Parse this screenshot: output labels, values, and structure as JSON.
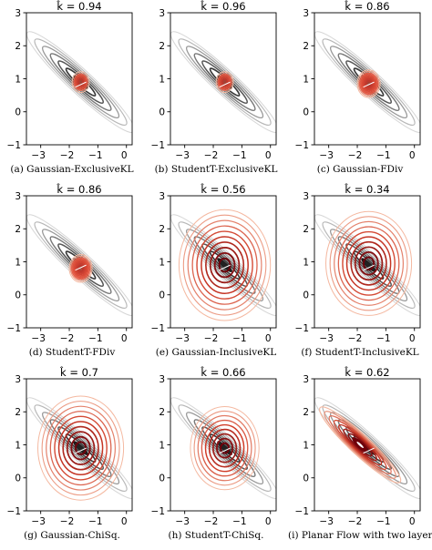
{
  "panels": [
    {
      "id": "a",
      "title": "k̂ = 0.94",
      "caption": "(a) Gaussian-ExclusiveKL"
    },
    {
      "id": "b",
      "title": "k̂ = 0.96",
      "caption": "(b) StudentT-ExclusiveKL"
    },
    {
      "id": "c",
      "title": "k̂ = 0.86",
      "caption": "(c) Gaussian-FDiv"
    },
    {
      "id": "d",
      "title": "k̂ = 0.86",
      "caption": "(d) StudentT-FDiv"
    },
    {
      "id": "e",
      "title": "k̂ = 0.56",
      "caption": "(e) Gaussian-InclusiveKL"
    },
    {
      "id": "f",
      "title": "k̂ = 0.34",
      "caption": "(f) StudentT-InclusiveKL"
    },
    {
      "id": "g",
      "title": "k̂ = 0.7",
      "caption": "(g) Gaussian-ChiSq."
    },
    {
      "id": "h",
      "title": "k̂ = 0.66",
      "caption": "(h) StudentT-ChiSq."
    },
    {
      "id": "i",
      "title": "k̂ = 0.62",
      "caption": "(i) Planar Flow with two layers"
    }
  ],
  "chart_data": {
    "type": "contour",
    "xlim": [
      -3.5,
      0.2
    ],
    "ylim": [
      -1,
      3
    ],
    "xticks": [
      "-3",
      "-2",
      "-1",
      "0"
    ],
    "yticks": [
      "-1",
      "0",
      "1",
      "2",
      "3"
    ],
    "target": {
      "type": "correlated Gaussian",
      "center": [
        -1.6,
        0.9
      ],
      "color_map": "greys"
    },
    "approximations": [
      {
        "panel": "a",
        "center": [
          -1.6,
          0.9
        ],
        "spread": "narrow",
        "max_radius_x": 0.3,
        "levels": 5
      },
      {
        "panel": "b",
        "center": [
          -1.6,
          0.9
        ],
        "spread": "narrow",
        "max_radius_x": 0.3,
        "levels": 5
      },
      {
        "panel": "c",
        "center": [
          -1.6,
          0.85
        ],
        "spread": "narrow",
        "max_radius_x": 0.4,
        "levels": 8
      },
      {
        "panel": "d",
        "center": [
          -1.6,
          0.8
        ],
        "spread": "narrow",
        "max_radius_x": 0.4,
        "levels": 8
      },
      {
        "panel": "e",
        "center": [
          -1.6,
          0.9
        ],
        "spread": "wide",
        "max_radius_x": 1.6,
        "levels": 10
      },
      {
        "panel": "f",
        "center": [
          -1.6,
          0.95
        ],
        "spread": "wide",
        "max_radius_x": 1.5,
        "levels": 10
      },
      {
        "panel": "g",
        "center": [
          -1.6,
          0.9
        ],
        "spread": "wide",
        "max_radius_x": 1.5,
        "levels": 10
      },
      {
        "panel": "h",
        "center": [
          -1.6,
          0.9
        ],
        "spread": "medium",
        "max_radius_x": 1.2,
        "levels": 9
      },
      {
        "panel": "i",
        "center": [
          -1.9,
          1.0
        ],
        "spread": "elongated",
        "levels": 8
      }
    ],
    "colors": {
      "target": "#333333",
      "approx_dark": "#8b0000",
      "approx_light": "#f4b8a0"
    }
  }
}
